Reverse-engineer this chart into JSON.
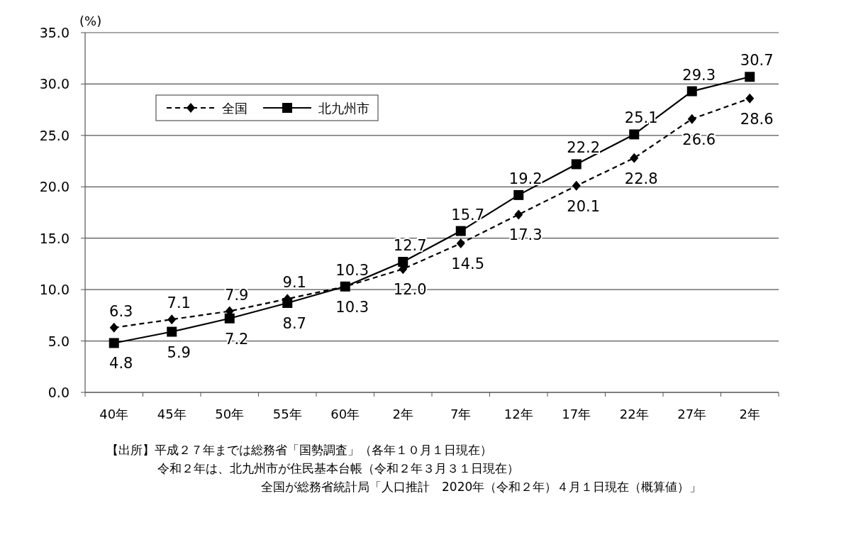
{
  "chart_data": {
    "type": "line",
    "ylabel": "(%)",
    "categories": [
      "40年",
      "45年",
      "50年",
      "55年",
      "60年",
      "2年",
      "7年",
      "12年",
      "17年",
      "22年",
      "27年",
      "2年"
    ],
    "series": [
      {
        "name": "全国",
        "color": "#000000",
        "marker": "diamond",
        "line_style": "dashed",
        "values": [
          6.3,
          7.1,
          7.9,
          9.1,
          10.3,
          12.0,
          14.5,
          17.3,
          20.1,
          22.8,
          26.6,
          28.6
        ],
        "value_labels": [
          "6.3",
          "7.1",
          "7.9",
          "9.1",
          "10.3",
          "12.0",
          "14.5",
          "17.3",
          "20.1",
          "22.8",
          "26.6",
          "28.6"
        ]
      },
      {
        "name": "北九州市",
        "color": "#000000",
        "marker": "square",
        "line_style": "solid",
        "values": [
          4.8,
          5.9,
          7.2,
          8.7,
          10.3,
          12.7,
          15.7,
          19.2,
          22.2,
          25.1,
          29.3,
          30.7
        ],
        "value_labels": [
          "4.8",
          "5.9",
          "7.2",
          "8.7",
          "10.3",
          "12.7",
          "15.7",
          "19.2",
          "22.2",
          "25.1",
          "29.3",
          "30.7"
        ]
      }
    ],
    "ylim": [
      0,
      35
    ],
    "yticks": [
      {
        "value": 0,
        "label": "0.0"
      },
      {
        "value": 5,
        "label": "5.0"
      },
      {
        "value": 10,
        "label": "10.0"
      },
      {
        "value": 15,
        "label": "15.0"
      },
      {
        "value": 20,
        "label": "20.0"
      },
      {
        "value": 25,
        "label": "25.0"
      },
      {
        "value": 30,
        "label": "30.0"
      },
      {
        "value": 35,
        "label": "35.0"
      }
    ],
    "grid": "y",
    "legend": "top left",
    "annotations": [
      "【出所】平成２７年までは総務省「国勢調査」（各年１０月１日現在）",
      "令和２年は、北九州市が住民基本台帳（令和２年３月３１日現在）",
      "全国が総務省統計局「人口推計　2020年（令和２年）４月１日現在（概算値）」"
    ]
  }
}
